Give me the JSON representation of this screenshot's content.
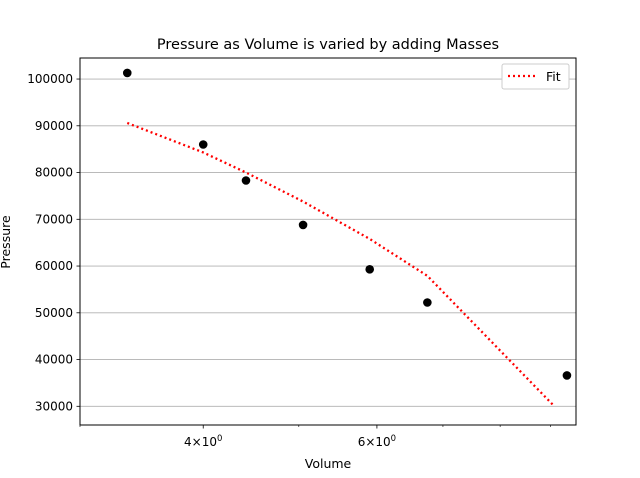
{
  "chart_data": {
    "type": "scatter",
    "title": "Pressure as Volume is varied by adding Masses",
    "xlabel": "Volume",
    "ylabel": "Pressure",
    "x_scale": "log",
    "xlim": [
      3.0,
      9.55
    ],
    "ylim": [
      26000,
      104500
    ],
    "grid": "y-major",
    "legend_position": "top-right",
    "x_ticks": [
      {
        "value": 4,
        "base": "4",
        "exp": "0"
      },
      {
        "value": 6,
        "base": "6",
        "exp": "0"
      }
    ],
    "x_minor_ticks": [
      3,
      5,
      7,
      8,
      9
    ],
    "y_ticks": [
      30000,
      40000,
      50000,
      60000,
      70000,
      80000,
      90000,
      100000
    ],
    "series": [
      {
        "kind": "points",
        "color": "#000000",
        "x": [
          3.35,
          4.0,
          4.42,
          5.05,
          5.9,
          6.75,
          9.35
        ],
        "y": [
          101300,
          86000,
          78300,
          68800,
          59300,
          52200,
          36600
        ]
      },
      {
        "kind": "line",
        "name": "Fit",
        "color": "#ff0000",
        "style": "dotted",
        "x": [
          3.35,
          4.0,
          4.42,
          5.05,
          5.9,
          6.75,
          9.08
        ],
        "y": [
          90600,
          84300,
          80000,
          73800,
          65800,
          57900,
          30000
        ]
      }
    ]
  }
}
